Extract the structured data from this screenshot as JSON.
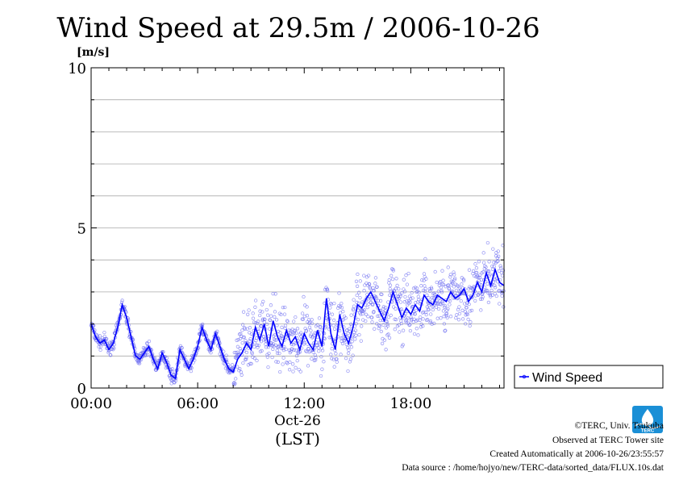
{
  "chart_data": {
    "type": "scatter",
    "title": "Wind Speed at 29.5m / 2006-10-26",
    "ylabel": "[m/s]",
    "xlabel": "Oct-26",
    "xlabel_sub": "(LST)",
    "xlim": [
      0,
      23.25
    ],
    "ylim": [
      0,
      10
    ],
    "x_ticks": [
      {
        "value": 0,
        "label": "00:00"
      },
      {
        "value": 6,
        "label": "06:00"
      },
      {
        "value": 12,
        "label": "12:00"
      },
      {
        "value": 18,
        "label": "18:00"
      }
    ],
    "y_ticks": [
      {
        "value": 0,
        "label": "0"
      },
      {
        "value": 5,
        "label": "5"
      },
      {
        "value": 10,
        "label": "10"
      }
    ],
    "grid": true,
    "legend": {
      "position": "right",
      "label": "Wind Speed"
    },
    "series": [
      {
        "name": "Wind Speed",
        "color": "#0000ff",
        "scatter_color": "#6f6ff0",
        "x": [
          0.0,
          0.25,
          0.5,
          0.75,
          1.0,
          1.25,
          1.5,
          1.75,
          2.0,
          2.25,
          2.5,
          2.75,
          3.0,
          3.25,
          3.5,
          3.75,
          4.0,
          4.25,
          4.5,
          4.75,
          5.0,
          5.25,
          5.5,
          5.75,
          6.0,
          6.25,
          6.5,
          6.75,
          7.0,
          7.25,
          7.5,
          7.75,
          8.0,
          8.25,
          8.5,
          8.75,
          9.0,
          9.25,
          9.5,
          9.75,
          10.0,
          10.25,
          10.5,
          10.75,
          11.0,
          11.25,
          11.5,
          11.75,
          12.0,
          12.25,
          12.5,
          12.75,
          13.0,
          13.25,
          13.5,
          13.75,
          14.0,
          14.25,
          14.5,
          14.75,
          15.0,
          15.25,
          15.5,
          15.75,
          16.0,
          16.25,
          16.5,
          16.75,
          17.0,
          17.25,
          17.5,
          17.75,
          18.0,
          18.25,
          18.5,
          18.75,
          19.0,
          19.25,
          19.5,
          19.75,
          20.0,
          20.25,
          20.5,
          20.75,
          21.0,
          21.25,
          21.5,
          21.75,
          22.0,
          22.25,
          22.5,
          22.75,
          23.0,
          23.25
        ],
        "values": [
          2.0,
          1.6,
          1.4,
          1.5,
          1.2,
          1.4,
          1.9,
          2.6,
          2.2,
          1.6,
          1.0,
          0.9,
          1.1,
          1.3,
          0.9,
          0.6,
          1.1,
          0.8,
          0.4,
          0.3,
          1.2,
          0.9,
          0.6,
          0.9,
          1.3,
          1.9,
          1.5,
          1.2,
          1.7,
          1.3,
          0.9,
          0.6,
          0.5,
          0.9,
          1.1,
          1.4,
          1.2,
          1.9,
          1.5,
          2.0,
          1.3,
          2.1,
          1.6,
          1.3,
          1.8,
          1.4,
          1.6,
          1.2,
          1.7,
          1.4,
          1.2,
          1.8,
          1.3,
          2.8,
          1.7,
          1.2,
          2.3,
          1.7,
          1.4,
          1.9,
          2.6,
          2.5,
          2.8,
          3.0,
          2.7,
          2.4,
          2.1,
          2.5,
          3.0,
          2.6,
          2.2,
          2.5,
          2.3,
          2.6,
          2.4,
          2.9,
          2.7,
          2.6,
          2.9,
          2.8,
          2.7,
          3.0,
          2.8,
          2.9,
          3.1,
          2.7,
          2.9,
          3.3,
          3.0,
          3.6,
          3.2,
          3.7,
          3.3,
          3.2
        ]
      }
    ]
  },
  "credits": {
    "copyright": "©TERC, Univ. Tsukuba",
    "observed": "Observed at TERC Tower site",
    "created": "Created Automatically at 2006-10-26/23:55:57",
    "source": "Data source : /home/hojyo/new/TERC-data/sorted_data/FLUX.10s.dat"
  },
  "logo": {
    "text": "TERC",
    "color": "#1a8fd6"
  }
}
